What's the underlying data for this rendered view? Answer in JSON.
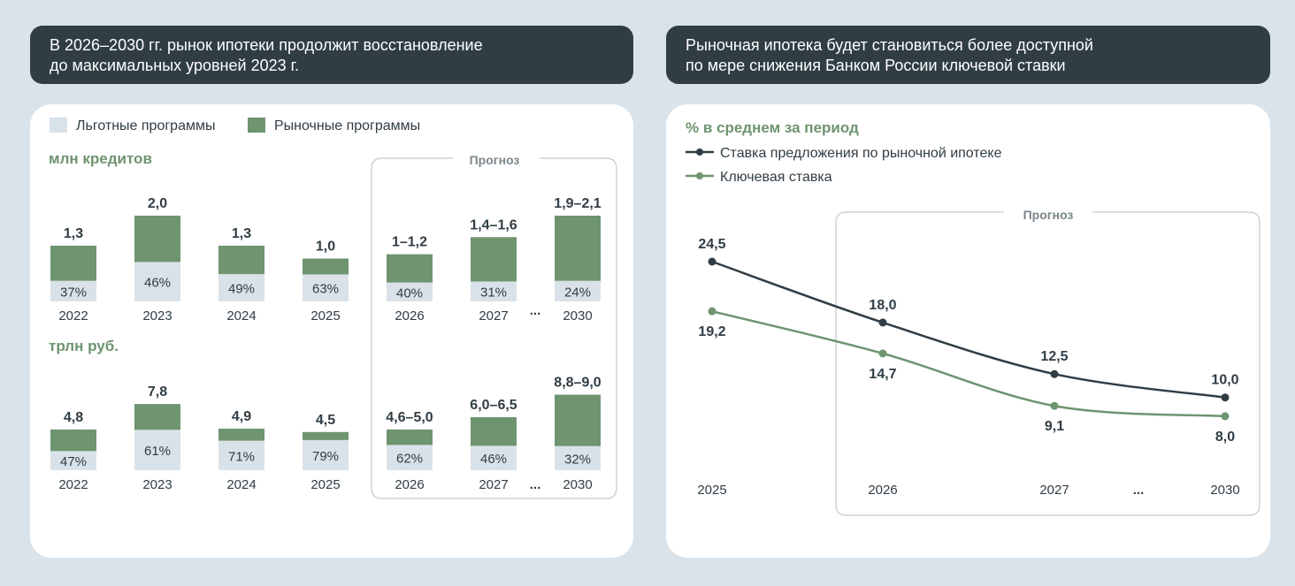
{
  "left_panel": {
    "header_lines": [
      "В 2026–2030 гг. рынок ипотеки продолжит восстановление",
      "до максимальных уровней 2023 г."
    ]
  },
  "right_panel": {
    "header_lines": [
      "Рыночная ипотека будет становиться более доступной",
      "по мере снижения Банком России ключевой ставки"
    ]
  },
  "colors": {
    "header_bg": "#303d45",
    "subsidized": "#d9e2e9",
    "market": "#6e9470",
    "rate_line": "#303d45",
    "key_line": "#6e9470",
    "accent_text": "#6e9470"
  },
  "ellipsis": "...",
  "chart_data": [
    {
      "type": "bar",
      "stacked": true,
      "title": "млн кредитов",
      "legend": [
        "Льготные программы",
        "Рыночные программы"
      ],
      "forecast_label": "Прогноз",
      "categories": [
        "2022",
        "2023",
        "2024",
        "2025",
        "2026",
        "2027",
        "2030"
      ],
      "forecast_from": "2026",
      "totals": [
        1.3,
        2.0,
        1.3,
        1.0,
        1.1,
        1.5,
        2.0
      ],
      "total_labels": [
        "1,3",
        "2,0",
        "1,3",
        "1,0",
        "1–1,2",
        "1,4–1,6",
        "1,9–2,1"
      ],
      "subsidized_share_pct": [
        37,
        46,
        49,
        63,
        40,
        31,
        24
      ],
      "subsidized_labels": [
        "37%",
        "46%",
        "49%",
        "63%",
        "40%",
        "31%",
        "24%"
      ],
      "ylim": [
        0,
        2.3
      ]
    },
    {
      "type": "bar",
      "stacked": true,
      "title": "трлн руб.",
      "categories": [
        "2022",
        "2023",
        "2024",
        "2025",
        "2026",
        "2027",
        "2030"
      ],
      "forecast_from": "2026",
      "totals": [
        4.8,
        7.8,
        4.9,
        4.5,
        4.8,
        6.25,
        8.9
      ],
      "total_labels": [
        "4,8",
        "7,8",
        "4,9",
        "4,5",
        "4,6–5,0",
        "6,0–6,5",
        "8,8–9,0"
      ],
      "subsidized_share_pct": [
        47,
        61,
        71,
        79,
        62,
        46,
        32
      ],
      "subsidized_labels": [
        "47%",
        "61%",
        "71%",
        "79%",
        "62%",
        "46%",
        "32%"
      ],
      "ylim": [
        0,
        10
      ]
    },
    {
      "type": "line",
      "title": "% в среднем за период",
      "forecast_label": "Прогноз",
      "categories": [
        "2025",
        "2026",
        "2027",
        "2030"
      ],
      "series": [
        {
          "name": "Ставка предложения по рыночной ипотеке",
          "values": [
            24.5,
            18.0,
            12.5,
            10.0
          ],
          "labels": [
            "24,5",
            "18,0",
            "12,5",
            "10,0"
          ]
        },
        {
          "name": "Ключевая ставка",
          "values": [
            19.2,
            14.7,
            9.1,
            8.0
          ],
          "labels": [
            "19,2",
            "14,7",
            "9,1",
            "8,0"
          ]
        }
      ],
      "ylim": [
        5,
        27
      ]
    }
  ]
}
